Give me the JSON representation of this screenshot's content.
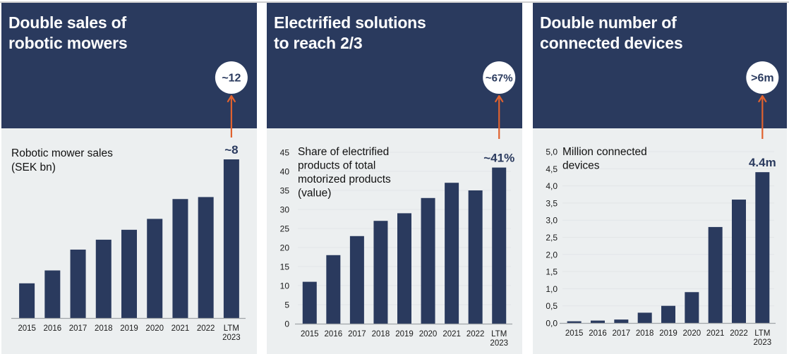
{
  "colors": {
    "navy": "#2a3a5e",
    "background": "#eceff0",
    "arrow": "#e0622f",
    "axis": "#a0a4a8"
  },
  "panels": [
    {
      "title_line1": "Double sales of",
      "title_line2": "robotic mowers",
      "target": "~12"
    },
    {
      "title_line1": "Electrified solutions",
      "title_line2": "to reach 2/3",
      "target": "~67%"
    },
    {
      "title_line1": "Double number of",
      "title_line2": "connected devices",
      "target": ">6m"
    }
  ],
  "chart_data": [
    {
      "type": "bar",
      "title": "Double sales of robotic mowers",
      "ylabel": "Robotic mower sales (SEK bn)",
      "ylabel_lines": [
        "Robotic mower sales",
        "(SEK bn)"
      ],
      "categories": [
        "2015",
        "2016",
        "2017",
        "2018",
        "2019",
        "2020",
        "2021",
        "2022",
        "LTM 2023"
      ],
      "values": [
        1.75,
        2.4,
        3.45,
        3.95,
        4.45,
        5.0,
        6.0,
        6.1,
        8.0
      ],
      "ylim": [
        0,
        8.5
      ],
      "yticks": [],
      "last_label": "~8",
      "target_label": "~12",
      "grid": false
    },
    {
      "type": "bar",
      "title": "Electrified solutions to reach 2/3",
      "ylabel": "Share of electrified products of total motorized products (value)",
      "ylabel_lines": [
        "Share of electrified",
        "products of total",
        "motorized products",
        "(value)"
      ],
      "categories": [
        "2015",
        "2016",
        "2017",
        "2018",
        "2019",
        "2020",
        "2021",
        "2022",
        "LTM 2023"
      ],
      "values": [
        11,
        18,
        23,
        27,
        29,
        33,
        37,
        35,
        41
      ],
      "ylim": [
        0,
        45
      ],
      "yticks": [
        "0",
        "5",
        "10",
        "15",
        "20",
        "25",
        "30",
        "35",
        "40",
        "45"
      ],
      "last_label": "~41%",
      "target_label": "~67%",
      "grid": true
    },
    {
      "type": "bar",
      "title": "Double number of connected devices",
      "ylabel": "Million connected devices",
      "ylabel_lines": [
        "Million connected",
        "devices"
      ],
      "categories": [
        "2015",
        "2016",
        "2017",
        "2018",
        "2019",
        "2020",
        "2021",
        "2022",
        "LTM 2023"
      ],
      "values": [
        0.05,
        0.07,
        0.1,
        0.3,
        0.5,
        0.9,
        2.8,
        3.6,
        4.4
      ],
      "ylim": [
        0,
        5.0
      ],
      "yticks": [
        "0,0",
        "0,5",
        "1,0",
        "1,5",
        "2,0",
        "2,5",
        "3,0",
        "3,5",
        "4,0",
        "4,5",
        "5,0"
      ],
      "last_label": "4.4m",
      "target_label": ">6m",
      "grid": true
    }
  ]
}
